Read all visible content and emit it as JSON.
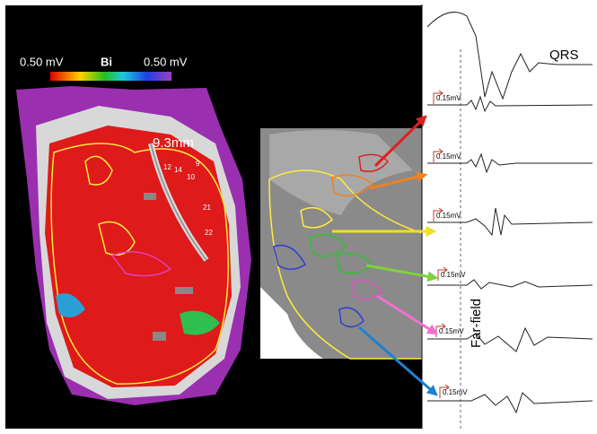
{
  "colorbar": {
    "min_label": "0.50 mV",
    "title": "Bi",
    "max_label": "0.50 mV"
  },
  "map": {
    "distance_label": "9.3mm",
    "point_labels": [
      "12",
      "14",
      "9",
      "10",
      "21",
      "22"
    ]
  },
  "traces": {
    "qrs_label": "QRS",
    "scale_labels": [
      "0.15mV",
      "0.15mV",
      "0.15mV",
      "0.15mV",
      "0.15mV",
      "0.15mV"
    ],
    "far_field_label": "Far-field"
  }
}
